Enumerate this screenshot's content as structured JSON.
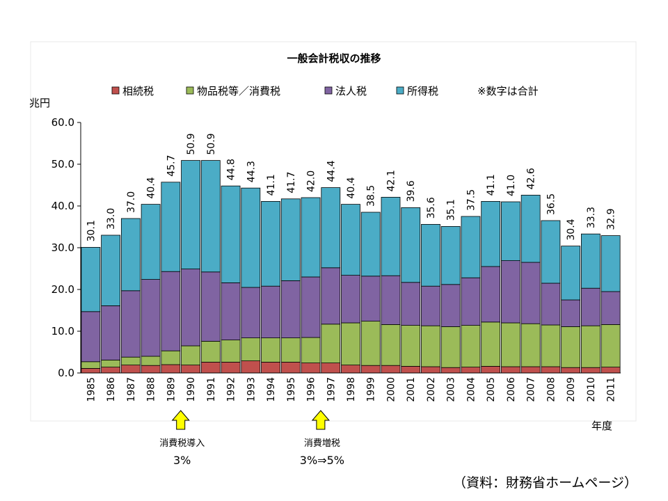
{
  "chart_data": {
    "type": "bar",
    "stacked": true,
    "title": "一般会計税収の推移",
    "ylabel": "兆円",
    "xlabel": "年度",
    "ylim": [
      0,
      60
    ],
    "yticks": [
      "0.0",
      "10.0",
      "20.0",
      "30.0",
      "40.0",
      "50.0",
      "60.0"
    ],
    "legend_position": "top",
    "legend_note": "※数字は合計",
    "categories": [
      "1985",
      "1986",
      "1987",
      "1988",
      "1989",
      "1990",
      "1991",
      "1992",
      "1993",
      "1994",
      "1995",
      "1996",
      "1997",
      "1998",
      "1999",
      "2000",
      "2001",
      "2002",
      "2003",
      "2004",
      "2005",
      "2006",
      "2007",
      "2008",
      "2009",
      "2010",
      "2011"
    ],
    "totals": [
      "30.1",
      "33.0",
      "37.0",
      "40.4",
      "45.7",
      "50.9",
      "50.9",
      "44.8",
      "44.3",
      "41.1",
      "41.7",
      "42.0",
      "44.4",
      "40.4",
      "38.5",
      "42.1",
      "39.6",
      "35.6",
      "35.1",
      "37.5",
      "41.1",
      "41.0",
      "42.6",
      "36.5",
      "30.4",
      "33.3",
      "32.9"
    ],
    "series": [
      {
        "name": "相続税",
        "color": "#c0504d",
        "values": [
          1.1,
          1.4,
          1.9,
          1.8,
          2.0,
          1.9,
          2.6,
          2.6,
          2.9,
          2.6,
          2.6,
          2.4,
          2.4,
          1.9,
          1.8,
          1.8,
          1.6,
          1.5,
          1.3,
          1.4,
          1.6,
          1.5,
          1.5,
          1.5,
          1.3,
          1.3,
          1.4
        ]
      },
      {
        "name": "物品税等／消費税",
        "color": "#9bbb59",
        "values": [
          1.6,
          1.7,
          1.9,
          2.2,
          3.3,
          4.6,
          5.0,
          5.3,
          5.5,
          5.8,
          5.8,
          6.1,
          9.3,
          10.1,
          10.6,
          9.8,
          9.8,
          9.8,
          9.8,
          10.0,
          10.6,
          10.5,
          10.3,
          10.0,
          9.8,
          10.0,
          10.2
        ]
      },
      {
        "name": "法人税",
        "color": "#8064a2",
        "values": [
          12.0,
          13.0,
          15.9,
          18.4,
          19.0,
          18.4,
          16.6,
          13.7,
          12.1,
          12.4,
          13.7,
          14.5,
          13.5,
          11.4,
          10.8,
          11.7,
          10.3,
          9.5,
          10.1,
          11.4,
          13.3,
          14.9,
          14.7,
          10.0,
          6.4,
          9.0,
          7.9
        ]
      },
      {
        "name": "所得税",
        "color": "#4bacc6",
        "values": [
          15.4,
          16.9,
          17.3,
          18.0,
          21.4,
          26.0,
          26.7,
          23.2,
          23.8,
          20.3,
          19.6,
          19.0,
          19.2,
          17.0,
          15.3,
          18.8,
          17.9,
          14.8,
          13.9,
          14.7,
          15.6,
          14.1,
          16.1,
          15.0,
          12.9,
          13.0,
          13.4
        ]
      }
    ]
  },
  "annotations": [
    {
      "year": "1990",
      "label": "消費税導入",
      "sub": "3%"
    },
    {
      "year": "1997",
      "label": "消費増税",
      "sub": "3%⇒5%"
    }
  ],
  "source": "（資料：財務省ホームページ）"
}
